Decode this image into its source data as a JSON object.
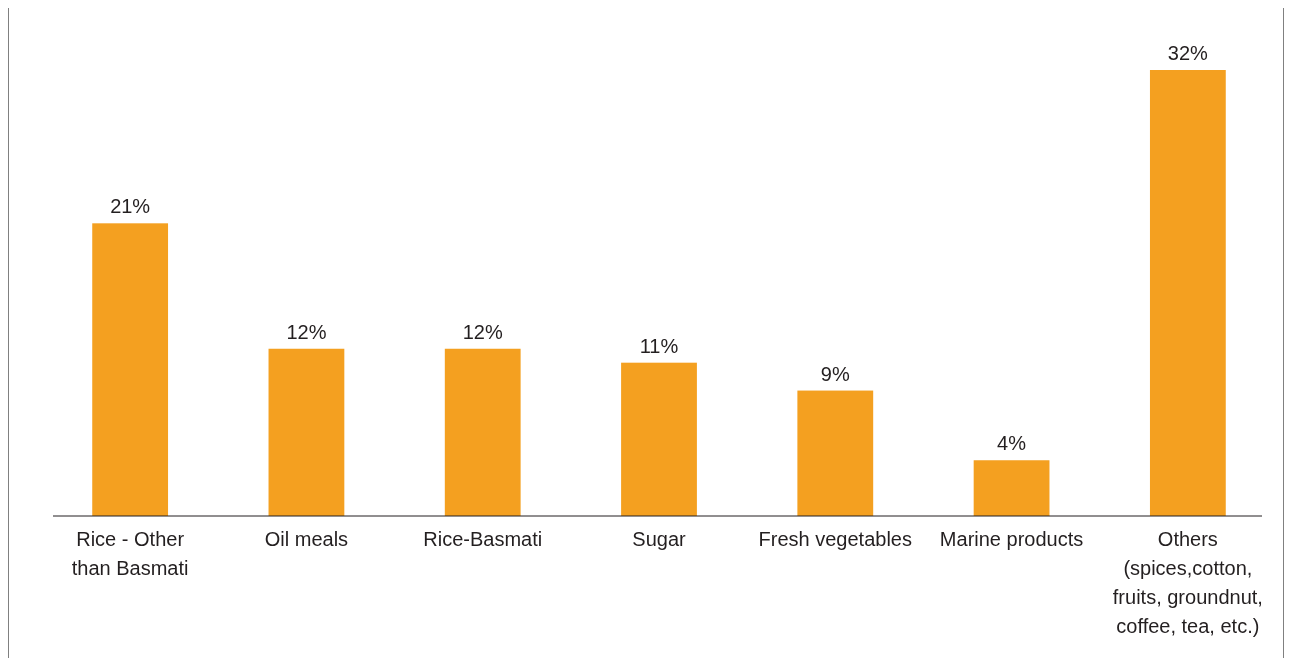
{
  "chart_data": {
    "type": "bar",
    "categories": [
      "Rice - Other than Basmati",
      "Oil meals",
      "Rice-Basmati",
      "Sugar",
      "Fresh vegetables",
      "Marine products",
      "Others (spices,cotton, fruits, groundnut, coffee, tea, etc.)"
    ],
    "values": [
      21,
      12,
      12,
      11,
      9,
      4,
      32
    ],
    "value_labels": [
      "21%",
      "12%",
      "12%",
      "11%",
      "9%",
      "4%",
      "32%"
    ],
    "color": "#f4a020"
  }
}
